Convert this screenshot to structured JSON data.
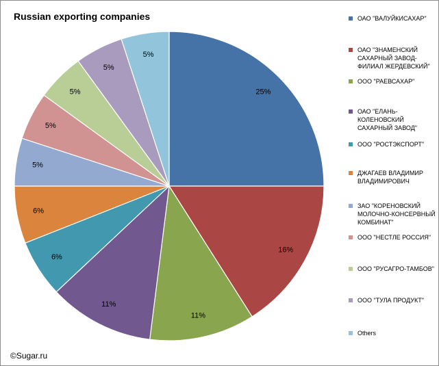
{
  "chart_data": {
    "type": "pie",
    "title": "Russian exporting companies",
    "categories": [
      "ОАО \"ВАЛУЙКИСАХАР\"",
      "ОАО \"ЗНАМЕНСКИЙ САХАРНЫЙ ЗАВОД-ФИЛИАЛ ЖЕРДЕВСКИЙ\"",
      "ООО \"РАЕВСАХАР\"",
      "ОАО \"ЕЛАНЬ-КОЛЕНОВСКИЙ САХАРНЫЙ ЗАВОД\"",
      "ООО \"РОСТЭКСПОРТ\"",
      "ДЖАГАЕВ ВЛАДИМИР ВЛАДИМИРОВИЧ",
      "ЗАО \"КОРЕНОВСКИЙ МОЛОЧНО-КОНСЕРВНЫЙ КОМБИНАТ\"",
      "ООО \"НЕСТЛЕ РОССИЯ\"",
      "ООО \"РУСАГРО-ТАМБОВ\"",
      "ООО \"ТУЛА ПРОДУКТ\"",
      "Others"
    ],
    "values": [
      25,
      16,
      11,
      11,
      6,
      6,
      5,
      5,
      5,
      5,
      5
    ],
    "labels": [
      "25%",
      "16%",
      "11%",
      "11%",
      "6%",
      "6%",
      "5%",
      "5%",
      "5%",
      "5%",
      "5%"
    ],
    "colors": [
      "#4572A7",
      "#AA4643",
      "#89A54E",
      "#71588F",
      "#4198AF",
      "#DB843D",
      "#93A9CF",
      "#D19392",
      "#B9CD96",
      "#A99BBD",
      "#92C5DB"
    ],
    "legend_position": "right",
    "start_angle_deg": 0,
    "direction": "clockwise"
  },
  "copyright": "©Sugar.ru"
}
